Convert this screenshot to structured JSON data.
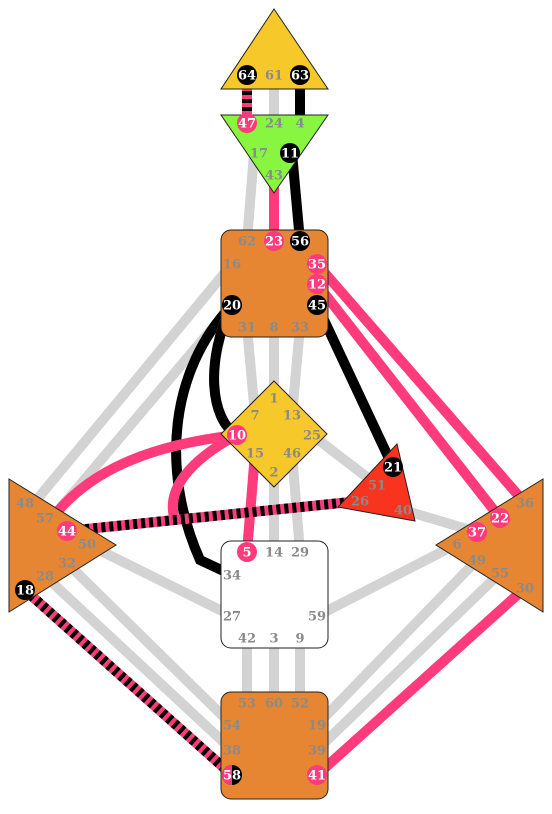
{
  "colors": {
    "head": "#f7c82a",
    "ajna": "#88f540",
    "center_orange": "#e68632",
    "g_center": "#f7c82a",
    "ego": "#f8341f",
    "sacral_white": "#ffffff",
    "inactive": "#d3d3d3",
    "conscious": "#000000",
    "unconscious": "#ff3b7b",
    "gate_muted": "#8a8a8a"
  },
  "centers": {
    "head": {
      "name": "head",
      "gates": [
        "64",
        "61",
        "63"
      ]
    },
    "ajna": {
      "name": "ajna",
      "gates": [
        "47",
        "24",
        "4",
        "17",
        "11",
        "43"
      ]
    },
    "throat": {
      "name": "throat",
      "gates": [
        "62",
        "23",
        "56",
        "16",
        "35",
        "12",
        "20",
        "45",
        "31",
        "8",
        "33"
      ]
    },
    "g": {
      "name": "g",
      "gates": [
        "1",
        "7",
        "13",
        "10",
        "25",
        "15",
        "46",
        "2"
      ]
    },
    "ego": {
      "name": "ego",
      "gates": [
        "21",
        "51",
        "26",
        "40"
      ]
    },
    "spleen": {
      "name": "spleen",
      "gates": [
        "48",
        "57",
        "44",
        "50",
        "32",
        "28",
        "18"
      ]
    },
    "solar_plexus": {
      "name": "solar-plexus",
      "gates": [
        "36",
        "22",
        "37",
        "6",
        "49",
        "55",
        "30"
      ]
    },
    "sacral": {
      "name": "sacral",
      "gates": [
        "5",
        "14",
        "29",
        "34",
        "27",
        "59",
        "42",
        "3",
        "9"
      ]
    },
    "root": {
      "name": "root",
      "gates": [
        "53",
        "60",
        "52",
        "54",
        "19",
        "38",
        "39",
        "58",
        "41"
      ]
    }
  },
  "activated_gates": {
    "conscious": [
      "64",
      "63",
      "11",
      "56",
      "20",
      "45",
      "21",
      "18"
    ],
    "unconscious": [
      "47",
      "23",
      "35",
      "12",
      "10",
      "5",
      "44",
      "37",
      "22",
      "41"
    ],
    "both": [
      "58"
    ]
  },
  "channels": [
    {
      "id": "64-47",
      "type": "both"
    },
    {
      "id": "61-24",
      "type": "inactive"
    },
    {
      "id": "63-4",
      "type": "conscious"
    },
    {
      "id": "17-62",
      "type": "inactive"
    },
    {
      "id": "43-23",
      "type": "unconscious"
    },
    {
      "id": "11-56",
      "type": "conscious"
    },
    {
      "id": "16-48",
      "type": "inactive"
    },
    {
      "id": "20-57",
      "type": "inactive"
    },
    {
      "id": "20-34",
      "type": "conscious"
    },
    {
      "id": "20-10",
      "type": "conscious"
    },
    {
      "id": "45-21",
      "type": "conscious"
    },
    {
      "id": "35-36",
      "type": "unconscious"
    },
    {
      "id": "12-22",
      "type": "unconscious"
    },
    {
      "id": "1-8",
      "type": "inactive"
    },
    {
      "id": "7-31",
      "type": "inactive"
    },
    {
      "id": "13-33",
      "type": "inactive"
    },
    {
      "id": "10-57",
      "type": "unconscious"
    },
    {
      "id": "10-34",
      "type": "unconscious"
    },
    {
      "id": "25-51",
      "type": "inactive"
    },
    {
      "id": "15-5",
      "type": "unconscious"
    },
    {
      "id": "46-29",
      "type": "inactive"
    },
    {
      "id": "2-14",
      "type": "inactive"
    },
    {
      "id": "26-44",
      "type": "both"
    },
    {
      "id": "40-37",
      "type": "inactive"
    },
    {
      "id": "50-27",
      "type": "inactive"
    },
    {
      "id": "32-54",
      "type": "inactive"
    },
    {
      "id": "28-38",
      "type": "inactive"
    },
    {
      "id": "18-58",
      "type": "both"
    },
    {
      "id": "6-59",
      "type": "inactive"
    },
    {
      "id": "49-19",
      "type": "inactive"
    },
    {
      "id": "55-39",
      "type": "inactive"
    },
    {
      "id": "30-41",
      "type": "unconscious"
    },
    {
      "id": "42-53",
      "type": "inactive"
    },
    {
      "id": "3-60",
      "type": "inactive"
    },
    {
      "id": "9-52",
      "type": "inactive"
    }
  ]
}
